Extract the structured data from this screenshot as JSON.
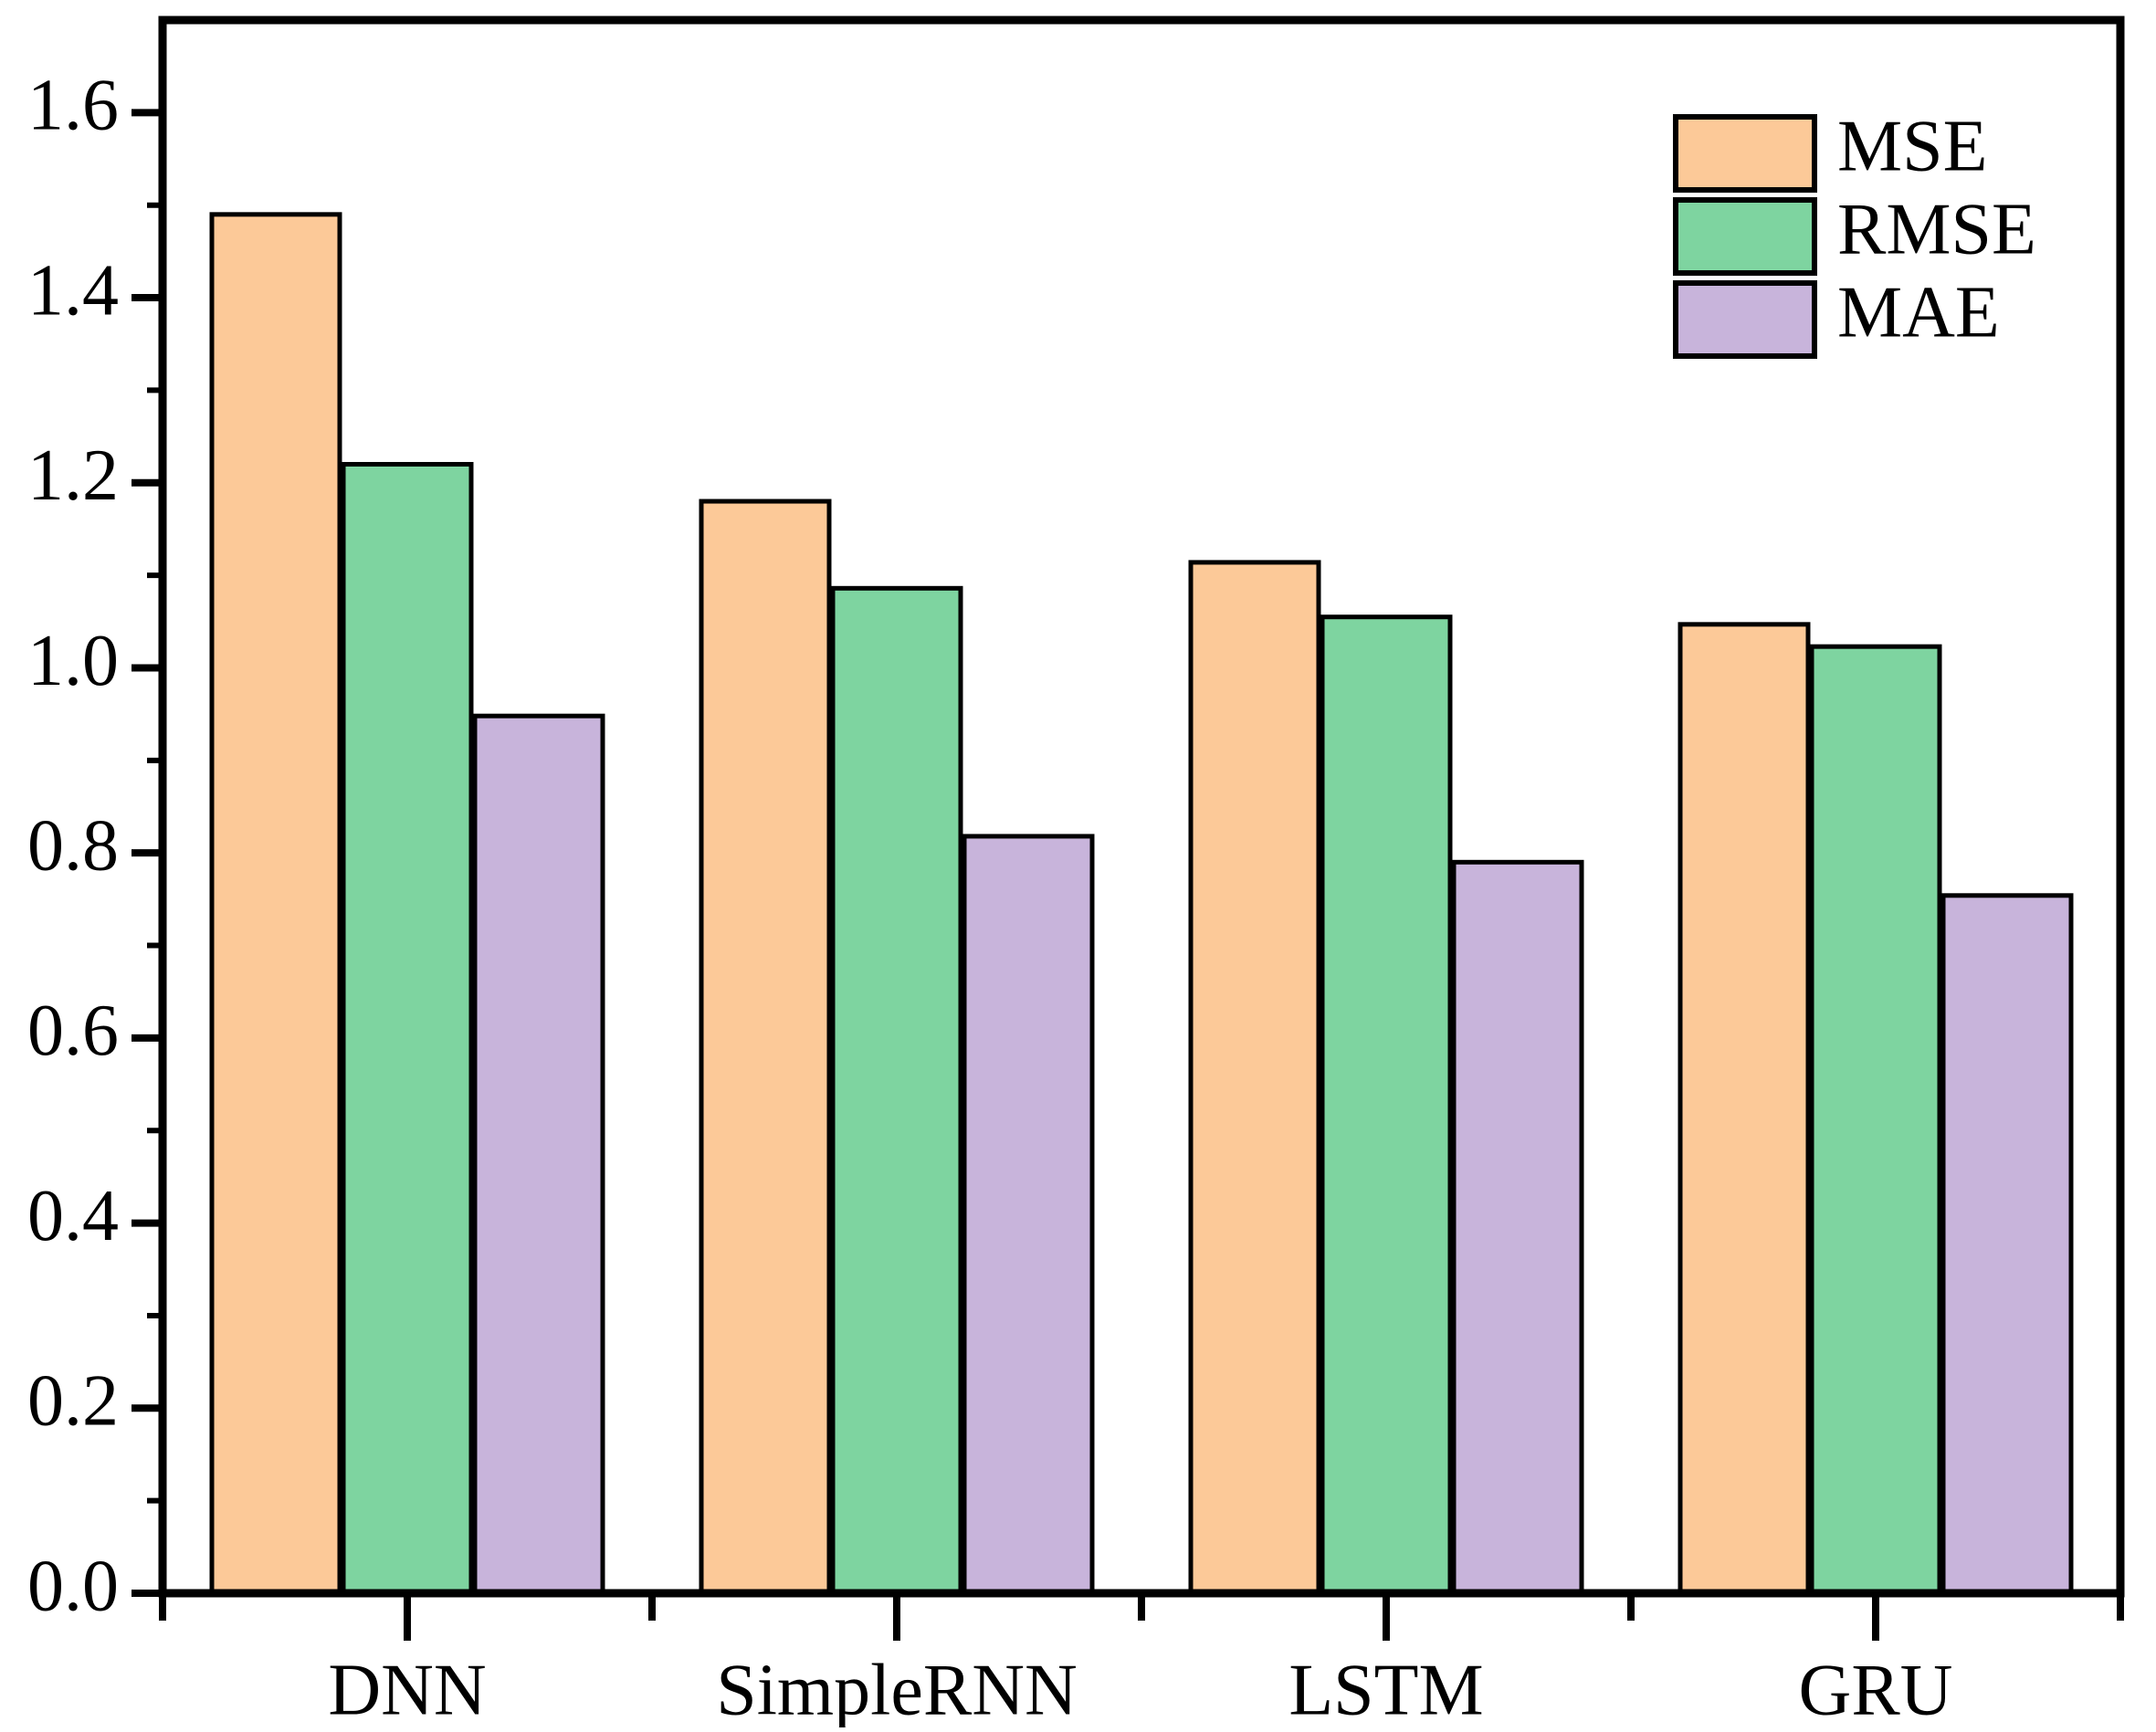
{
  "figure": {
    "background": "#ffffff",
    "frame_color": "#000000",
    "text_color": "#000000"
  },
  "chart_data": {
    "type": "bar",
    "title": "",
    "xlabel": "",
    "ylabel": "",
    "categories": [
      "DNN",
      "SimpleRNN",
      "LSTM",
      "GRU"
    ],
    "series": [
      {
        "name": "MSE",
        "color": "#FCC998",
        "values": [
          1.49,
          1.18,
          1.114,
          1.047
        ]
      },
      {
        "name": "RMSE",
        "color": "#7ED4A0",
        "values": [
          1.22,
          1.086,
          1.055,
          1.023
        ]
      },
      {
        "name": "MAE",
        "color": "#C8B4DB",
        "values": [
          0.948,
          0.818,
          0.79,
          0.754
        ]
      }
    ],
    "bar_edge_color": "#000000",
    "ylim": [
      0,
      1.7
    ],
    "yticks": [
      0.0,
      0.2,
      0.4,
      0.6,
      0.8,
      1.0,
      1.2,
      1.4,
      1.6
    ],
    "ytick_labels": [
      "0.0",
      "0.2",
      "0.4",
      "0.6",
      "0.8",
      "1.0",
      "1.2",
      "1.4",
      "1.6"
    ],
    "minor_tick_step": 0.1,
    "grid": false,
    "legend_position": "top-right",
    "legend_entries": [
      "MSE",
      "RMSE",
      "MAE"
    ]
  }
}
